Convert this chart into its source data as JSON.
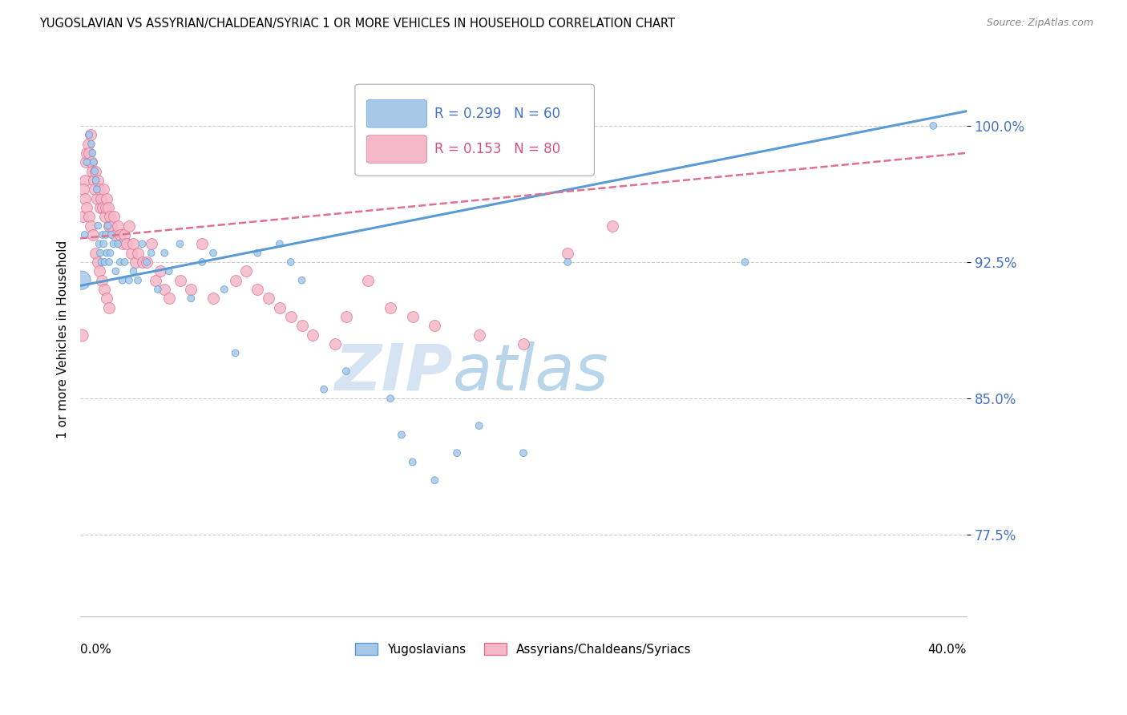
{
  "title": "YUGOSLAVIAN VS ASSYRIAN/CHALDEAN/SYRIAC 1 OR MORE VEHICLES IN HOUSEHOLD CORRELATION CHART",
  "source": "Source: ZipAtlas.com",
  "ylabel": "1 or more Vehicles in Household",
  "xlabel_bottom_left": "0.0%",
  "xlabel_bottom_right": "40.0%",
  "xmin": 0.0,
  "xmax": 40.0,
  "ymin": 73.0,
  "ymax": 103.5,
  "yticks": [
    77.5,
    85.0,
    92.5,
    100.0
  ],
  "ytick_labels": [
    "77.5%",
    "85.0%",
    "92.5%",
    "100.0%"
  ],
  "legend_blue_R": "R = 0.299",
  "legend_blue_N": "N = 60",
  "legend_pink_R": "R = 0.153",
  "legend_pink_N": "N = 80",
  "series_blue_label": "Yugoslavians",
  "series_pink_label": "Assyrians/Chaldeans/Syriacs",
  "blue_color": "#A8C8E8",
  "blue_edge": "#5B9BD5",
  "pink_color": "#F4B8C8",
  "pink_edge": "#E07090",
  "watermark_zip": "ZIP",
  "watermark_atlas": "atlas",
  "blue_trend_x0": 0.0,
  "blue_trend_y0": 91.2,
  "blue_trend_x1": 40.0,
  "blue_trend_y1": 100.8,
  "pink_trend_x0": 0.0,
  "pink_trend_y0": 93.8,
  "pink_trend_x1": 40.0,
  "pink_trend_y1": 98.5,
  "blue_x": [
    0.05,
    0.2,
    0.3,
    0.4,
    0.5,
    0.55,
    0.6,
    0.65,
    0.7,
    0.75,
    0.8,
    0.85,
    0.9,
    0.95,
    1.0,
    1.05,
    1.1,
    1.15,
    1.2,
    1.25,
    1.3,
    1.35,
    1.4,
    1.5,
    1.6,
    1.7,
    1.8,
    1.9,
    2.0,
    2.2,
    2.4,
    2.6,
    2.8,
    3.0,
    3.2,
    3.5,
    3.8,
    4.0,
    4.5,
    5.0,
    5.5,
    6.0,
    6.5,
    7.0,
    8.0,
    9.0,
    9.5,
    10.0,
    11.0,
    12.0,
    14.0,
    14.5,
    15.0,
    16.0,
    17.0,
    18.0,
    20.0,
    22.0,
    30.0,
    38.5
  ],
  "blue_y": [
    91.5,
    94.0,
    98.0,
    99.5,
    99.0,
    98.5,
    98.0,
    97.5,
    97.0,
    96.5,
    94.5,
    93.5,
    93.0,
    92.5,
    94.0,
    93.5,
    92.5,
    94.0,
    93.0,
    94.5,
    92.5,
    93.0,
    94.0,
    93.5,
    92.0,
    93.5,
    92.5,
    91.5,
    92.5,
    91.5,
    92.0,
    91.5,
    93.5,
    92.5,
    93.0,
    91.0,
    93.0,
    92.0,
    93.5,
    90.5,
    92.5,
    93.0,
    91.0,
    87.5,
    93.0,
    93.5,
    92.5,
    91.5,
    85.5,
    86.5,
    85.0,
    83.0,
    81.5,
    80.5,
    82.0,
    83.5,
    82.0,
    92.5,
    92.5,
    100.0
  ],
  "blue_sizes": [
    280,
    40,
    40,
    40,
    40,
    40,
    40,
    40,
    40,
    40,
    40,
    40,
    40,
    40,
    40,
    40,
    40,
    40,
    40,
    40,
    40,
    40,
    40,
    40,
    40,
    40,
    40,
    40,
    40,
    40,
    40,
    40,
    40,
    40,
    40,
    40,
    40,
    40,
    40,
    40,
    40,
    40,
    40,
    40,
    40,
    40,
    40,
    40,
    40,
    40,
    40,
    40,
    40,
    40,
    40,
    40,
    40,
    40,
    40,
    40
  ],
  "pink_x": [
    0.1,
    0.2,
    0.25,
    0.3,
    0.35,
    0.4,
    0.45,
    0.5,
    0.55,
    0.6,
    0.65,
    0.7,
    0.75,
    0.8,
    0.85,
    0.9,
    0.95,
    1.0,
    1.05,
    1.1,
    1.15,
    1.2,
    1.25,
    1.3,
    1.35,
    1.4,
    1.5,
    1.6,
    1.7,
    1.8,
    1.9,
    2.0,
    2.1,
    2.2,
    2.3,
    2.4,
    2.5,
    2.6,
    2.8,
    3.0,
    3.2,
    3.4,
    3.6,
    3.8,
    4.0,
    4.5,
    5.0,
    5.5,
    6.0,
    7.0,
    7.5,
    8.0,
    8.5,
    9.0,
    9.5,
    10.0,
    10.5,
    11.5,
    12.0,
    13.0,
    14.0,
    15.0,
    16.0,
    18.0,
    20.0,
    22.0,
    24.0,
    0.15,
    0.22,
    0.28,
    0.38,
    0.48,
    0.58,
    0.68,
    0.78,
    0.88,
    0.98,
    1.08,
    1.18,
    1.28
  ],
  "pink_y": [
    95.0,
    97.0,
    98.0,
    98.5,
    99.0,
    98.5,
    99.5,
    98.0,
    97.5,
    97.0,
    96.5,
    97.5,
    96.0,
    97.0,
    96.5,
    95.5,
    96.0,
    95.5,
    96.5,
    95.0,
    95.5,
    96.0,
    95.5,
    94.5,
    95.0,
    94.5,
    95.0,
    94.0,
    94.5,
    94.0,
    93.5,
    94.0,
    93.5,
    94.5,
    93.0,
    93.5,
    92.5,
    93.0,
    92.5,
    92.5,
    93.5,
    91.5,
    92.0,
    91.0,
    90.5,
    91.5,
    91.0,
    93.5,
    90.5,
    91.5,
    92.0,
    91.0,
    90.5,
    90.0,
    89.5,
    89.0,
    88.5,
    88.0,
    89.5,
    91.5,
    90.0,
    89.5,
    89.0,
    88.5,
    88.0,
    93.0,
    94.5,
    96.5,
    96.0,
    95.5,
    95.0,
    94.5,
    94.0,
    93.0,
    92.5,
    92.0,
    91.5,
    91.0,
    90.5,
    90.0
  ],
  "pink_large_x": 0.05,
  "pink_large_y": 88.5,
  "pink_large_size": 120
}
